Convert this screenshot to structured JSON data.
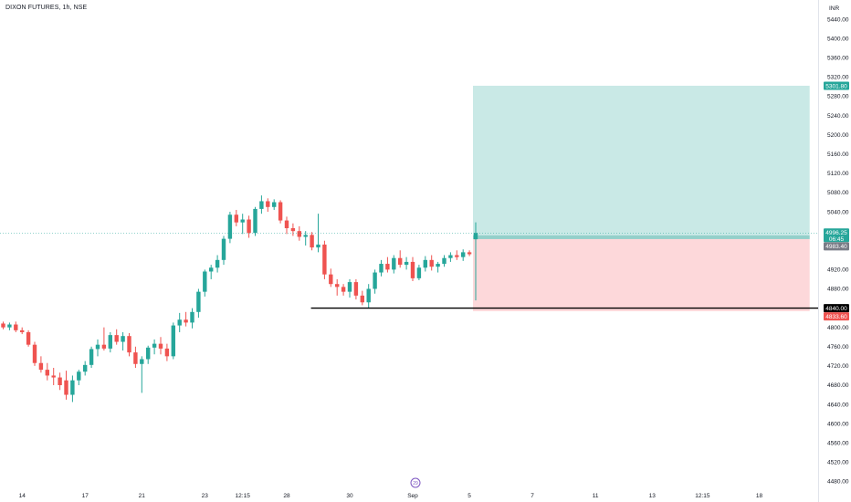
{
  "header": {
    "symbol_title": "DIXON FUTURES, 1h, NSE",
    "currency": "INR"
  },
  "colors": {
    "up": "#26a69a",
    "down": "#ef5350",
    "profit_zone": "#b2dfdb",
    "loss_zone": "#fccbcd",
    "price_line": "#26a69a",
    "level_line": "#000000",
    "grid": "#ffffff"
  },
  "badges": {
    "target": "5301.80",
    "last_price": "4996.25",
    "countdown": "06:45",
    "entry": "4983.40",
    "stop_level": "4840.00",
    "stop": "4833.60"
  },
  "session_marker": "29",
  "chart_data": {
    "type": "candlestick",
    "title": "DIXON FUTURES, 1h, NSE",
    "ylabel": "INR",
    "ylim": [
      4480,
      5460
    ],
    "y_ticks": [
      5440,
      5400,
      5360,
      5320,
      5280,
      5240,
      5200,
      5160,
      5120,
      5080,
      5040,
      4920,
      4880,
      4800,
      4760,
      4720,
      4680,
      4640,
      4600,
      4560,
      4520,
      4480
    ],
    "y_tick_labels": [
      "5440.00",
      "5400.00",
      "5360.00",
      "5320.00",
      "5280.00",
      "5240.00",
      "5200.00",
      "5160.00",
      "5120.00",
      "5080.00",
      "5040.00",
      "4920.00",
      "4880.00",
      "4800.00",
      "4760.00",
      "4720.00",
      "4680.00",
      "4640.00",
      "4600.00",
      "4560.00",
      "4520.00",
      "4480.00"
    ],
    "x_ticks": [
      "14",
      "17",
      "21",
      "23",
      "12:15",
      "28",
      "30",
      "Sep",
      "5",
      "7",
      "11",
      "13",
      "12:15",
      "18"
    ],
    "x_tick_bars": [
      3,
      13,
      22,
      32,
      38,
      45,
      55,
      65,
      74,
      84,
      94,
      103,
      111,
      120
    ],
    "candles": [
      [
        4808,
        4812,
        4796,
        4800
      ],
      [
        4800,
        4810,
        4794,
        4806
      ],
      [
        4806,
        4812,
        4790,
        4794
      ],
      [
        4794,
        4800,
        4786,
        4790
      ],
      [
        4790,
        4794,
        4760,
        4764
      ],
      [
        4764,
        4770,
        4720,
        4726
      ],
      [
        4726,
        4740,
        4706,
        4712
      ],
      [
        4712,
        4726,
        4690,
        4700
      ],
      [
        4700,
        4716,
        4680,
        4696
      ],
      [
        4696,
        4706,
        4670,
        4680
      ],
      [
        4690,
        4710,
        4650,
        4660
      ],
      [
        4660,
        4700,
        4645,
        4690
      ],
      [
        4690,
        4712,
        4680,
        4708
      ],
      [
        4708,
        4730,
        4700,
        4722
      ],
      [
        4722,
        4760,
        4716,
        4755
      ],
      [
        4755,
        4775,
        4740,
        4764
      ],
      [
        4764,
        4800,
        4752,
        4756
      ],
      [
        4756,
        4790,
        4748,
        4784
      ],
      [
        4784,
        4796,
        4764,
        4770
      ],
      [
        4770,
        4790,
        4752,
        4782
      ],
      [
        4782,
        4788,
        4740,
        4748
      ],
      [
        4748,
        4760,
        4716,
        4724
      ],
      [
        4724,
        4740,
        4664,
        4734
      ],
      [
        4734,
        4762,
        4724,
        4758
      ],
      [
        4758,
        4775,
        4744,
        4766
      ],
      [
        4766,
        4780,
        4744,
        4756
      ],
      [
        4756,
        4766,
        4730,
        4740
      ],
      [
        4740,
        4810,
        4734,
        4804
      ],
      [
        4804,
        4830,
        4790,
        4816
      ],
      [
        4816,
        4832,
        4802,
        4810
      ],
      [
        4810,
        4840,
        4798,
        4832
      ],
      [
        4832,
        4880,
        4820,
        4874
      ],
      [
        4874,
        4920,
        4864,
        4916
      ],
      [
        4916,
        4930,
        4900,
        4924
      ],
      [
        4924,
        4950,
        4914,
        4940
      ],
      [
        4940,
        4990,
        4930,
        4984
      ],
      [
        4984,
        5040,
        4975,
        5034
      ],
      [
        5034,
        5044,
        5010,
        5018
      ],
      [
        5018,
        5036,
        4994,
        5024
      ],
      [
        5024,
        5032,
        4986,
        4996
      ],
      [
        4996,
        5050,
        4990,
        5046
      ],
      [
        5046,
        5074,
        5036,
        5062
      ],
      [
        5062,
        5068,
        5040,
        5050
      ],
      [
        5050,
        5066,
        5044,
        5060
      ],
      [
        5060,
        5064,
        5016,
        5022
      ],
      [
        5022,
        5030,
        4994,
        5006
      ],
      [
        5006,
        5016,
        4990,
        5000
      ],
      [
        5000,
        5010,
        4980,
        4988
      ],
      [
        4988,
        5000,
        4970,
        4992
      ],
      [
        4992,
        4998,
        4960,
        4966
      ],
      [
        4966,
        5036,
        4956,
        4972
      ],
      [
        4972,
        4980,
        4900,
        4910
      ],
      [
        4910,
        4922,
        4884,
        4890
      ],
      [
        4890,
        4900,
        4866,
        4884
      ],
      [
        4884,
        4890,
        4866,
        4874
      ],
      [
        4874,
        4900,
        4862,
        4894
      ],
      [
        4894,
        4900,
        4858,
        4866
      ],
      [
        4866,
        4876,
        4846,
        4852
      ],
      [
        4852,
        4890,
        4840,
        4880
      ],
      [
        4880,
        4920,
        4870,
        4914
      ],
      [
        4914,
        4940,
        4906,
        4932
      ],
      [
        4932,
        4946,
        4914,
        4920
      ],
      [
        4920,
        4950,
        4912,
        4944
      ],
      [
        4944,
        4960,
        4924,
        4930
      ],
      [
        4930,
        4946,
        4920,
        4936
      ],
      [
        4936,
        4946,
        4896,
        4902
      ],
      [
        4902,
        4930,
        4898,
        4924
      ],
      [
        4924,
        4948,
        4916,
        4940
      ],
      [
        4940,
        4950,
        4918,
        4926
      ],
      [
        4926,
        4936,
        4914,
        4932
      ],
      [
        4932,
        4950,
        4926,
        4944
      ],
      [
        4944,
        4956,
        4936,
        4950
      ],
      [
        4950,
        4960,
        4940,
        4946
      ],
      [
        4946,
        4962,
        4938,
        4956
      ],
      [
        4956,
        4960,
        4948,
        4952
      ],
      [
        4983,
        5018,
        4856,
        4996
      ]
    ],
    "position": {
      "entry": 4983.4,
      "target": 5301.8,
      "stop": 4833.6,
      "stop_level": 4840.0,
      "start_bar": 75,
      "end_bar": 128
    }
  }
}
